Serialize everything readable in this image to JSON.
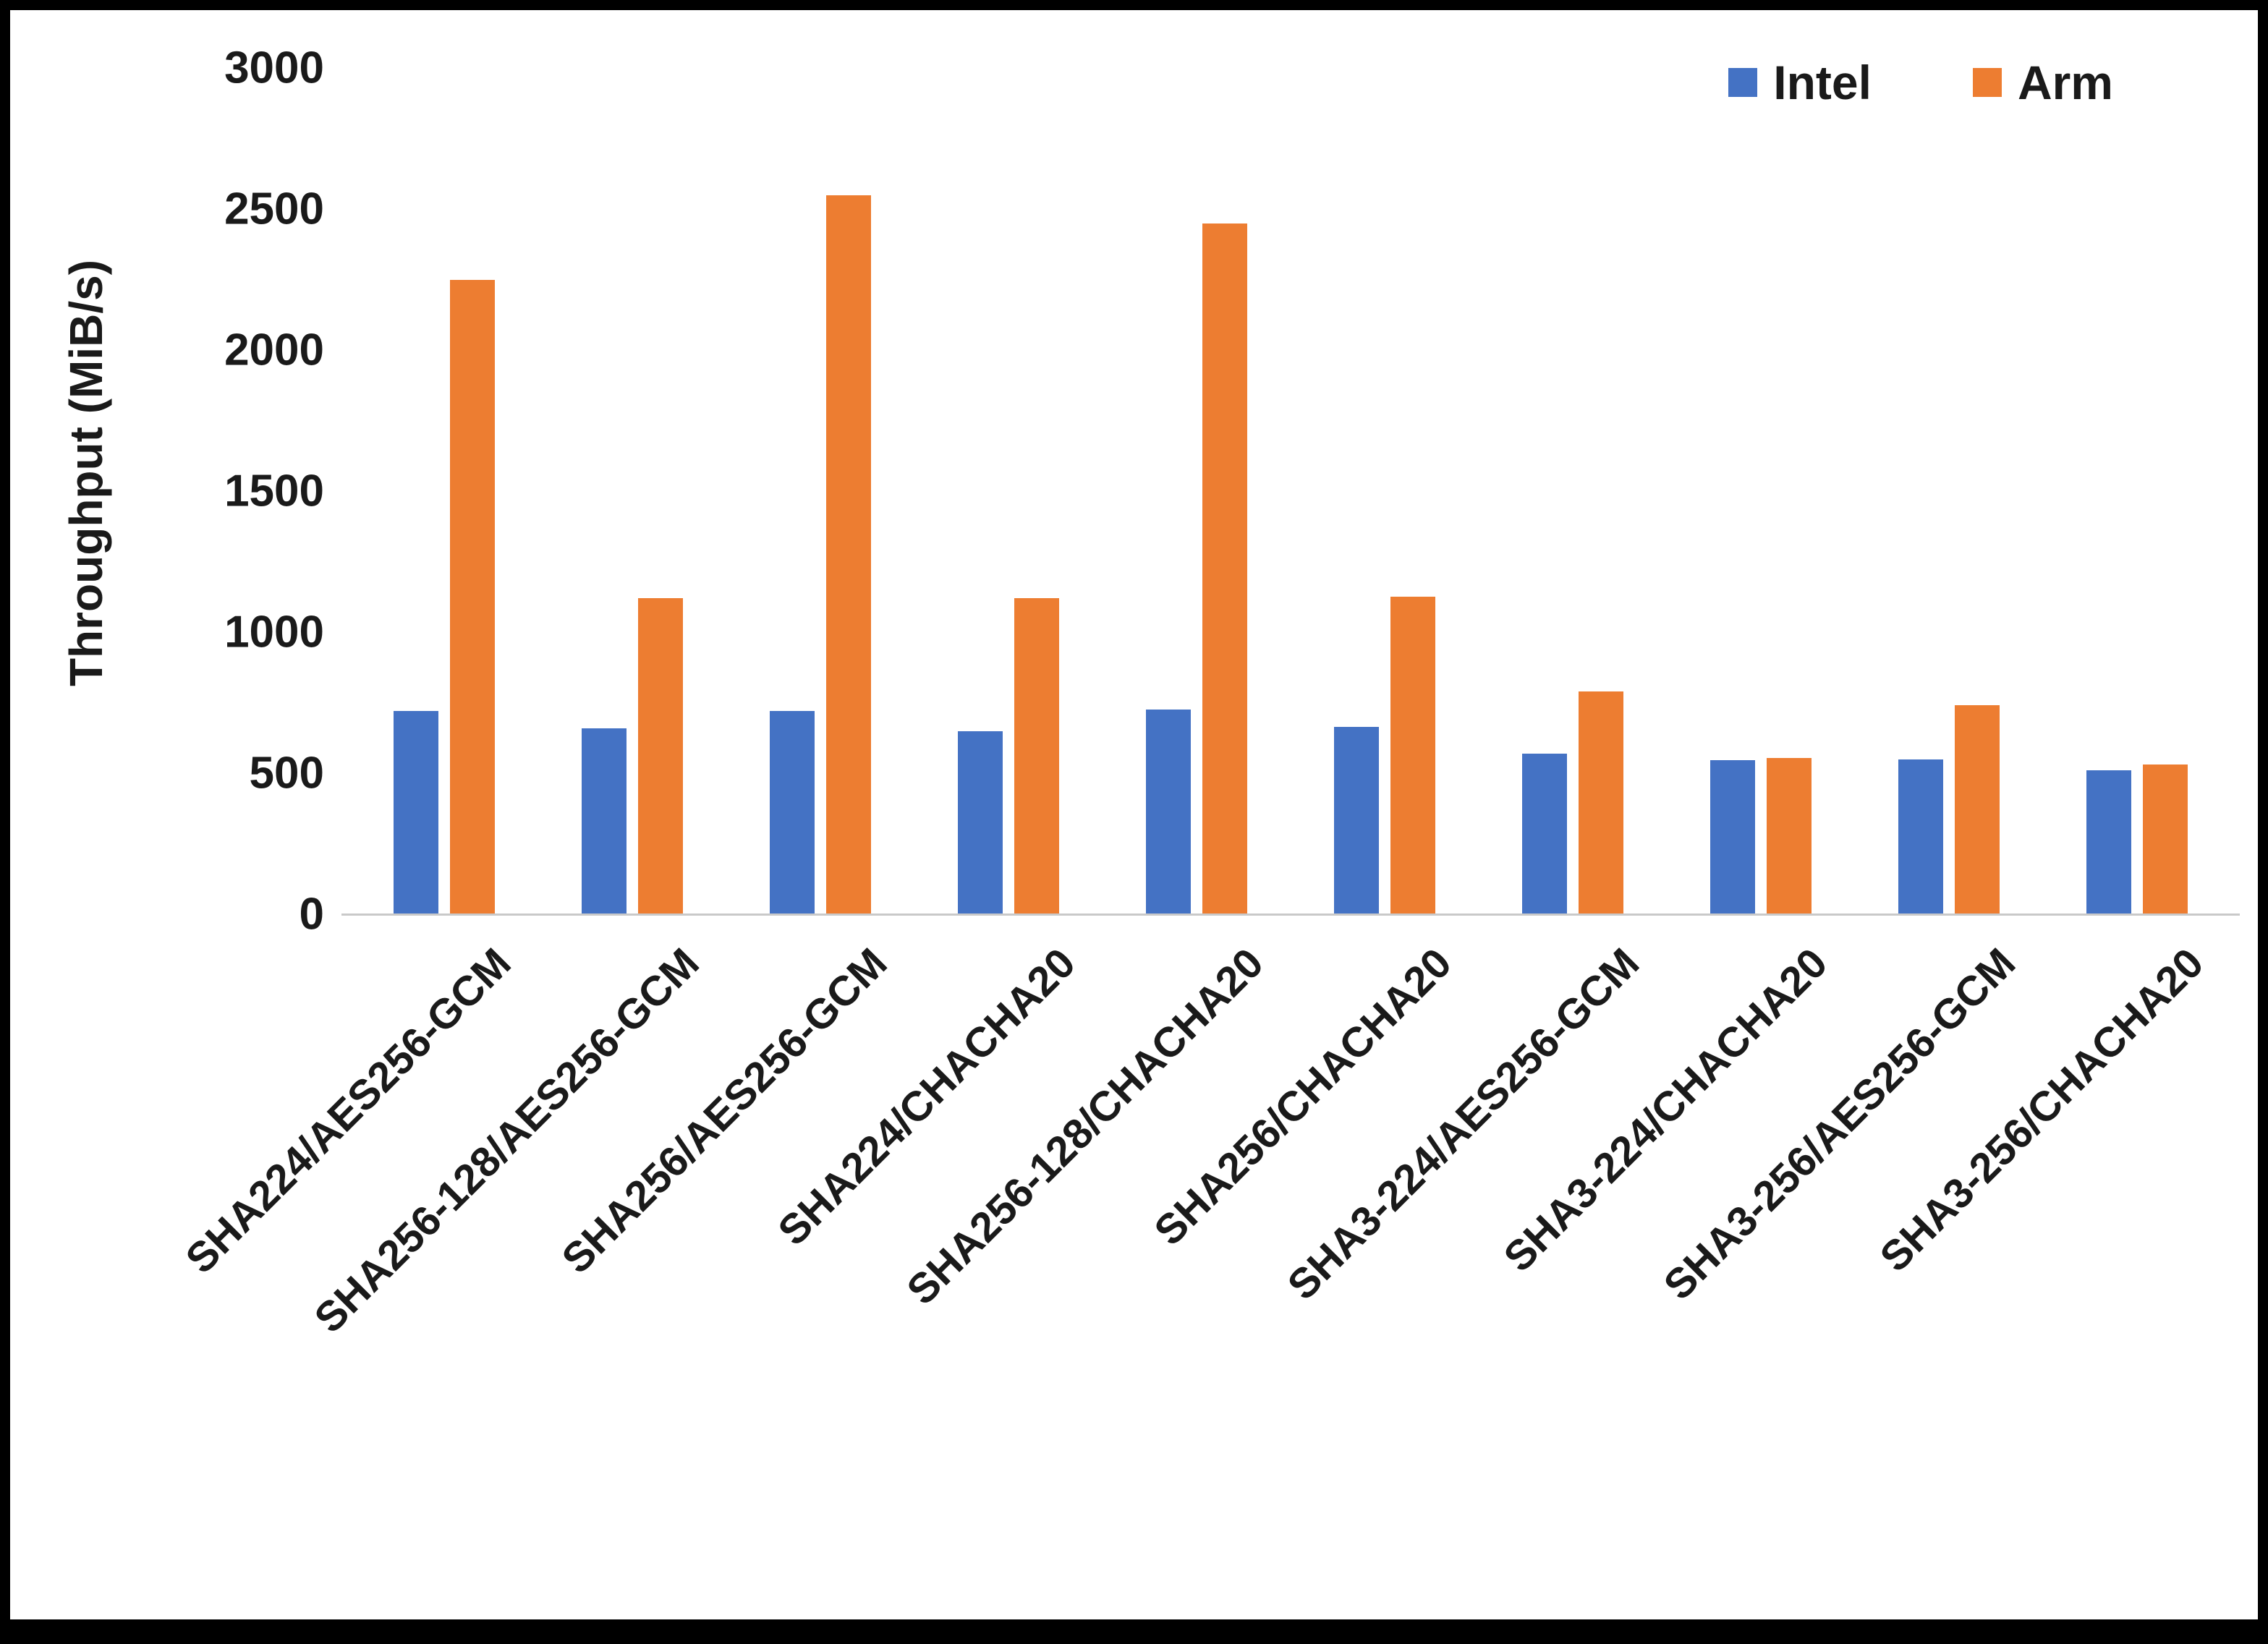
{
  "chart_data": {
    "type": "bar",
    "title": "",
    "xlabel": "",
    "ylabel": "Throughput (MiB/s)",
    "ylim": [
      0,
      3000
    ],
    "yticks": [
      0,
      500,
      1000,
      1500,
      2000,
      2500,
      3000
    ],
    "grid": false,
    "legend_position": "top-right",
    "categories": [
      "SHA224/AES256-GCM",
      "SHA256-128/AES256-GCM",
      "SHA256/AES256-GCM",
      "SHA224/CHACHA20",
      "SHA256-128/CHACHA20",
      "SHA256/CHACHA20",
      "SHA3-224/AES256-GCM",
      "SHA3-224/CHACHA20",
      "SHA3-256/AES256-GCM",
      "SHA3-256/CHACHA20"
    ],
    "series": [
      {
        "name": "Intel",
        "color": "#4472C4",
        "values": [
          720,
          660,
          720,
          650,
          725,
          665,
          570,
          545,
          550,
          510
        ]
      },
      {
        "name": "Arm",
        "color": "#ED7D31",
        "values": [
          2250,
          1120,
          2550,
          1120,
          2450,
          1125,
          790,
          555,
          740,
          530
        ]
      }
    ]
  }
}
